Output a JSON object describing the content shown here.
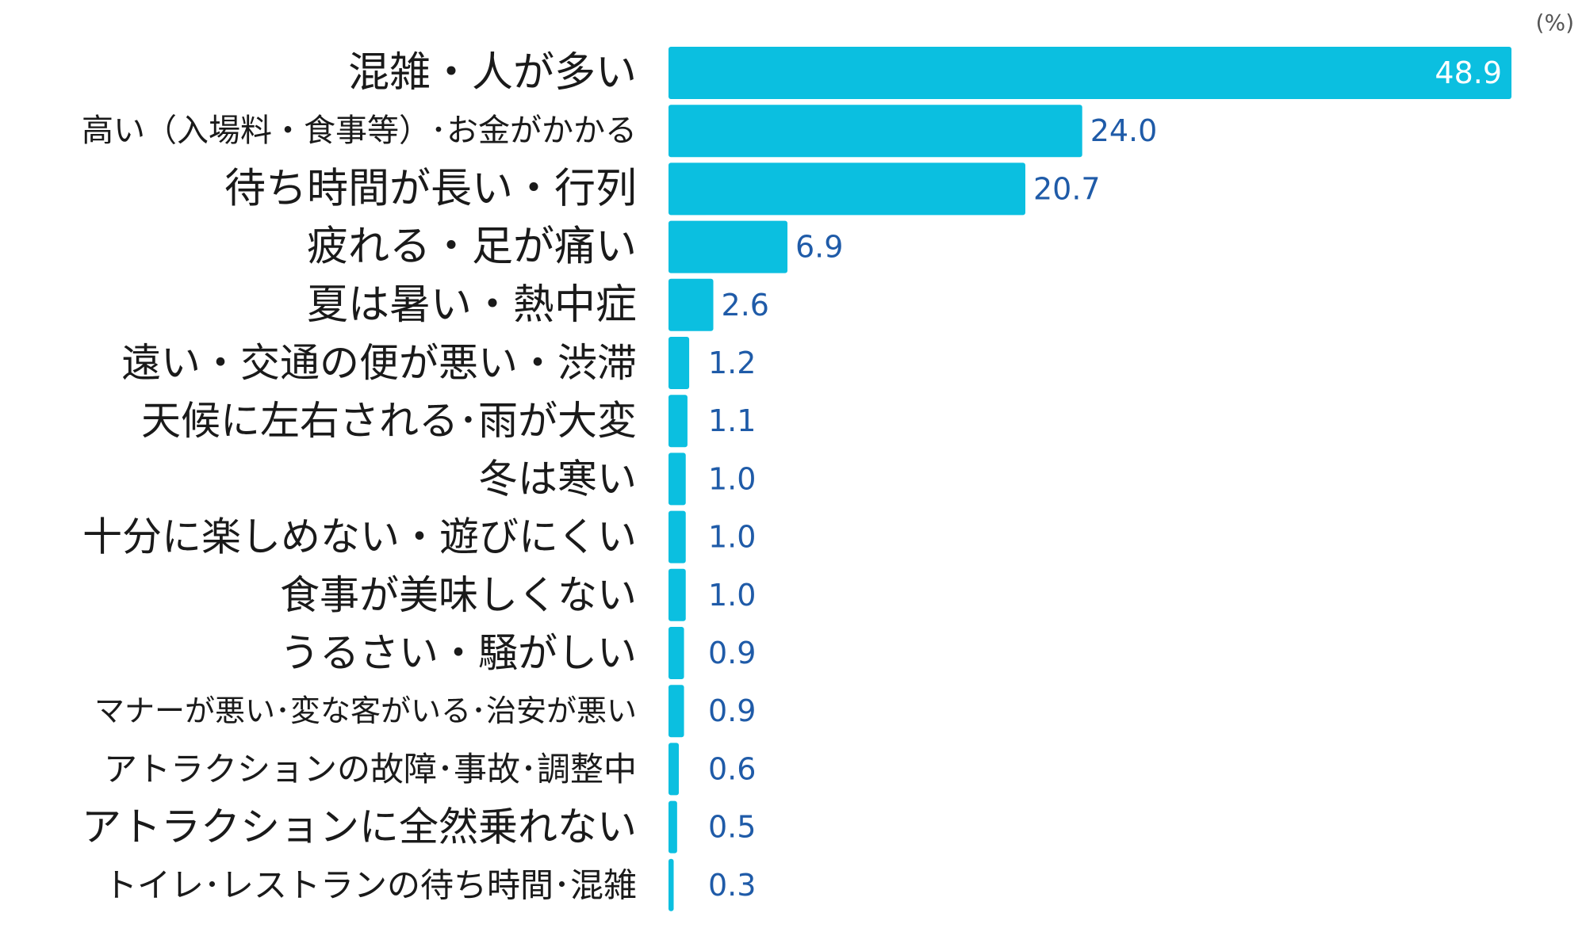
{
  "chart_data": {
    "type": "bar",
    "orientation": "horizontal",
    "unit": "(%)",
    "categories": [
      "混雑・人が多い",
      "高い（入場料・食事等）･お金がかかる",
      "待ち時間が長い・行列",
      "疲れる・足が痛い",
      "夏は暑い・熱中症",
      "遠い・交通の便が悪い・渋滞",
      "天候に左右される･雨が大変",
      "冬は寒い",
      "十分に楽しめない・遊びにくい",
      "食事が美味しくない",
      "うるさい・騒がしい",
      "マナーが悪い･変な客がいる･治安が悪い",
      "アトラクションの故障･事故･調整中",
      "アトラクションに全然乗れない",
      "トイレ･レストランの待ち時間･混雑"
    ],
    "values": [
      48.9,
      24.0,
      20.7,
      6.9,
      2.6,
      1.2,
      1.1,
      1.0,
      1.0,
      1.0,
      0.9,
      0.9,
      0.6,
      0.5,
      0.3
    ],
    "value_labels": [
      "48.9",
      "24.0",
      "20.7",
      "6.9",
      "2.6",
      "1.2",
      "1.1",
      "1.0",
      "1.0",
      "1.0",
      "0.9",
      "0.9",
      "0.6",
      "0.5",
      "0.3"
    ],
    "xlim": [
      0,
      50
    ],
    "grid": false,
    "legend": "none",
    "colors": {
      "bar": "#0bbfe0",
      "value_text": "#1f5ba8",
      "value_text_inside": "#ffffff"
    }
  }
}
